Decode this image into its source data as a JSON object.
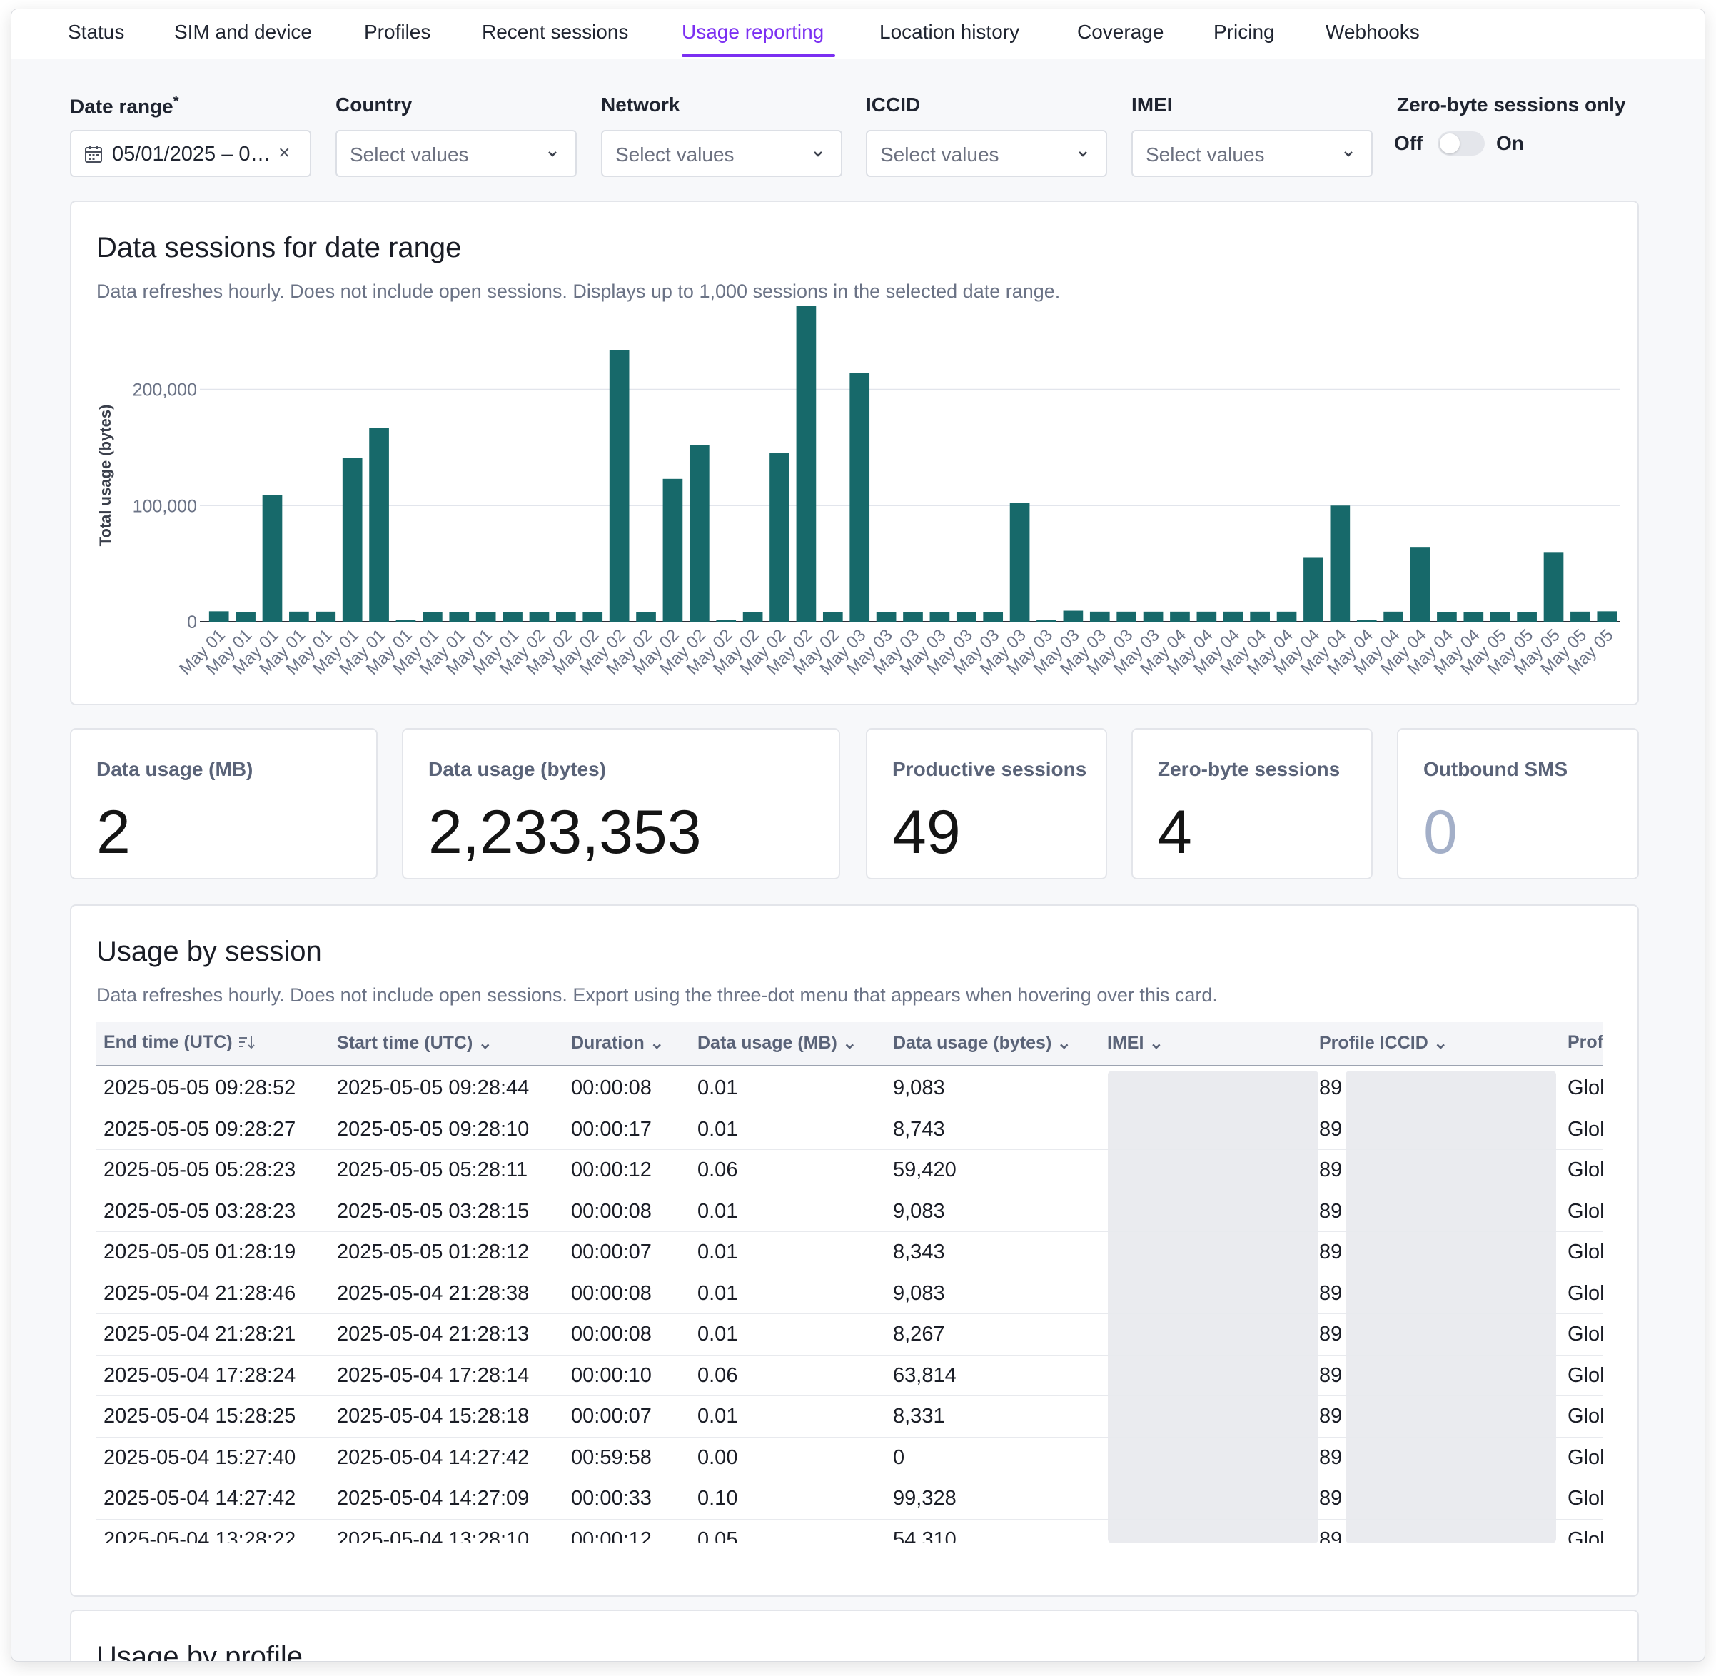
{
  "tabs": [
    {
      "label": "Status"
    },
    {
      "label": "SIM and device"
    },
    {
      "label": "Profiles"
    },
    {
      "label": "Recent sessions"
    },
    {
      "label": "Usage reporting",
      "active": true
    },
    {
      "label": "Location history"
    },
    {
      "label": "Coverage"
    },
    {
      "label": "Pricing"
    },
    {
      "label": "Webhooks"
    }
  ],
  "filters": {
    "date_range": {
      "label": "Date range",
      "required_mark": "*",
      "value": "05/01/2025 – 0…",
      "clear": "×"
    },
    "country": {
      "label": "Country",
      "placeholder": "Select values"
    },
    "network": {
      "label": "Network",
      "placeholder": "Select values"
    },
    "iccid": {
      "label": "ICCID",
      "placeholder": "Select values"
    },
    "imei": {
      "label": "IMEI",
      "placeholder": "Select values"
    },
    "zero_byte": {
      "label": "Zero-byte sessions only",
      "off": "Off",
      "on": "On",
      "enabled": false
    }
  },
  "sessions_chart": {
    "title": "Data sessions for date range",
    "subtitle": "Data refreshes hourly. Does not include open sessions. Displays up to 1,000 sessions in the selected date range."
  },
  "chart_data": {
    "type": "bar",
    "ylabel": "Total usage (bytes)",
    "xlabel": "",
    "ylim": [
      0,
      270000
    ],
    "yticks": [
      "0",
      "100,000",
      "200,000"
    ],
    "ytick_values": [
      0,
      100000,
      200000
    ],
    "bar_color": "#17696a",
    "grid": true,
    "categories": [
      "May 01",
      "May 01",
      "May 01",
      "May 01",
      "May 01",
      "May 01",
      "May 01",
      "May 01",
      "May 01",
      "May 01",
      "May 01",
      "May 01",
      "May 02",
      "May 02",
      "May 02",
      "May 02",
      "May 02",
      "May 02",
      "May 02",
      "May 02",
      "May 02",
      "May 02",
      "May 02",
      "May 02",
      "May 03",
      "May 03",
      "May 03",
      "May 03",
      "May 03",
      "May 03",
      "May 03",
      "May 03",
      "May 03",
      "May 03",
      "May 03",
      "May 03",
      "May 04",
      "May 04",
      "May 04",
      "May 04",
      "May 04",
      "May 04",
      "May 04",
      "May 04",
      "May 04",
      "May 04",
      "May 04",
      "May 04",
      "May 05",
      "May 05",
      "May 05",
      "May 05",
      "May 05"
    ],
    "values": [
      9000,
      8500,
      109000,
      8700,
      8700,
      141000,
      167000,
      1500,
      8500,
      8500,
      8500,
      8500,
      8500,
      8500,
      8500,
      234000,
      8500,
      123000,
      152000,
      1500,
      8500,
      145000,
      272000,
      8500,
      214000,
      8500,
      8500,
      8500,
      8500,
      8500,
      102000,
      1500,
      9500,
      8700,
      8700,
      8700,
      8700,
      8700,
      8700,
      8700,
      8700,
      55000,
      100000,
      1500,
      8700,
      63800,
      8300,
      8300,
      8300,
      8300,
      59400,
      8700,
      9000
    ]
  },
  "stats": [
    {
      "label": "Data usage (MB)",
      "value": "2"
    },
    {
      "label": "Data usage (bytes)",
      "value": "2,233,353"
    },
    {
      "label": "Productive sessions",
      "value": "49"
    },
    {
      "label": "Zero-byte sessions",
      "value": "4"
    },
    {
      "label": "Outbound SMS",
      "value": "0",
      "muted": true
    }
  ],
  "usage_by_session": {
    "title": "Usage by session",
    "subtitle": "Data refreshes hourly. Does not include open sessions. Export using the three-dot menu that appears when hovering over this card.",
    "columns": [
      "End time (UTC)",
      "Start time (UTC)",
      "Duration",
      "Data usage (MB)",
      "Data usage (bytes)",
      "IMEI",
      "Profile ICCID",
      "Profil"
    ],
    "rows": [
      [
        "2025-05-05 09:28:52",
        "2025-05-05 09:28:44",
        "00:00:08",
        "0.01",
        "9,083",
        "",
        "89",
        "Glob"
      ],
      [
        "2025-05-05 09:28:27",
        "2025-05-05 09:28:10",
        "00:00:17",
        "0.01",
        "8,743",
        "",
        "89",
        "Glob"
      ],
      [
        "2025-05-05 05:28:23",
        "2025-05-05 05:28:11",
        "00:00:12",
        "0.06",
        "59,420",
        "",
        "89",
        "Glob"
      ],
      [
        "2025-05-05 03:28:23",
        "2025-05-05 03:28:15",
        "00:00:08",
        "0.01",
        "9,083",
        "",
        "89",
        "Glob"
      ],
      [
        "2025-05-05 01:28:19",
        "2025-05-05 01:28:12",
        "00:00:07",
        "0.01",
        "8,343",
        "",
        "89",
        "Glob"
      ],
      [
        "2025-05-04 21:28:46",
        "2025-05-04 21:28:38",
        "00:00:08",
        "0.01",
        "9,083",
        "",
        "89",
        "Glob"
      ],
      [
        "2025-05-04 21:28:21",
        "2025-05-04 21:28:13",
        "00:00:08",
        "0.01",
        "8,267",
        "",
        "89",
        "Glob"
      ],
      [
        "2025-05-04 17:28:24",
        "2025-05-04 17:28:14",
        "00:00:10",
        "0.06",
        "63,814",
        "",
        "89",
        "Glob"
      ],
      [
        "2025-05-04 15:28:25",
        "2025-05-04 15:28:18",
        "00:00:07",
        "0.01",
        "8,331",
        "",
        "89",
        "Glob"
      ],
      [
        "2025-05-04 15:27:40",
        "2025-05-04 14:27:42",
        "00:59:58",
        "0.00",
        "0",
        "",
        "89",
        "Glob"
      ],
      [
        "2025-05-04 14:27:42",
        "2025-05-04 14:27:09",
        "00:00:33",
        "0.10",
        "99,328",
        "",
        "89",
        "Glob"
      ],
      [
        "2025-05-04 13:28:22",
        "2025-05-04 13:28:10",
        "00:00:12",
        "0.05",
        "54,310",
        "",
        "89",
        "Glob"
      ]
    ]
  },
  "usage_by_profile": {
    "title": "Usage by profile"
  }
}
